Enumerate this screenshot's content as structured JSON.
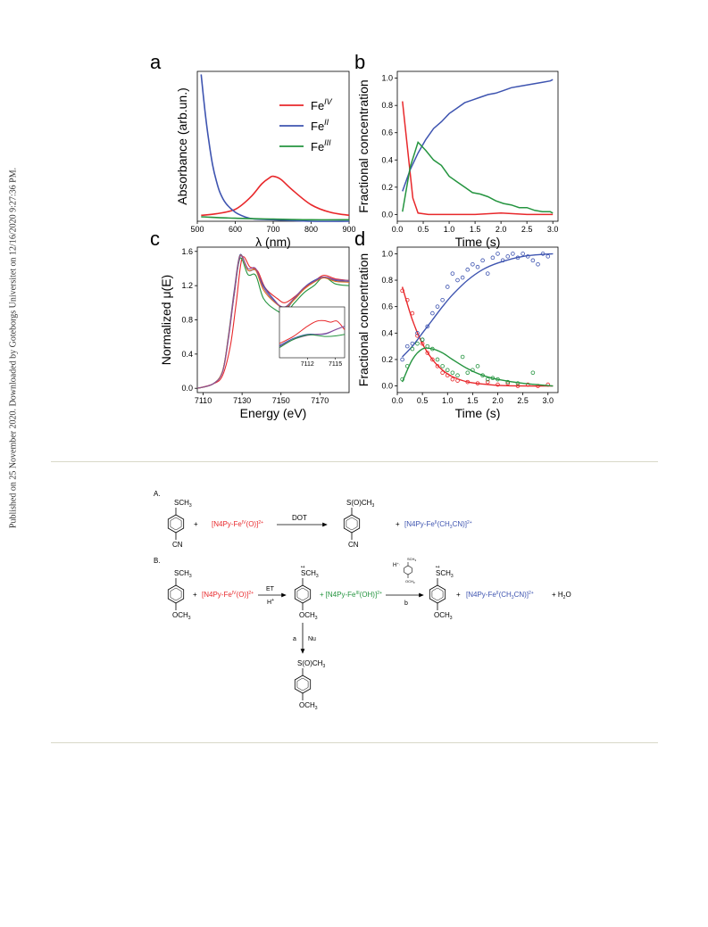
{
  "sidebar_text": "Published on 25 November 2020. Downloaded by Goteborgs Universitet on 12/16/2020 9:27:36 PM.",
  "colors": {
    "red": "#e8282b",
    "blue": "#3e54b0",
    "green": "#24943f",
    "orange": "#e0711d",
    "purple": "#8a4c9a"
  },
  "chart_data": [
    {
      "panel": "a",
      "type": "line",
      "xlabel": "λ (nm)",
      "ylabel": "Absorbance (arb.un.)",
      "xlim": [
        500,
        900
      ],
      "ylim": [
        0,
        1.0
      ],
      "xticks": [
        "500",
        "600",
        "700",
        "800",
        "900"
      ],
      "legend_position": "top-right",
      "series": [
        {
          "name": "FeIV",
          "label_base": "Fe",
          "label_sup": "IV",
          "color": "#e8282b",
          "x": [
            510,
            550,
            600,
            640,
            670,
            690,
            700,
            720,
            750,
            800,
            850,
            900
          ],
          "y": [
            0.04,
            0.05,
            0.08,
            0.16,
            0.25,
            0.29,
            0.3,
            0.28,
            0.21,
            0.11,
            0.06,
            0.04
          ]
        },
        {
          "name": "FeII",
          "label_base": "Fe",
          "label_sup": "II",
          "color": "#3e54b0",
          "x": [
            510,
            520,
            530,
            540,
            550,
            560,
            575,
            600,
            625,
            650,
            700,
            800,
            900
          ],
          "y": [
            0.98,
            0.74,
            0.54,
            0.38,
            0.27,
            0.19,
            0.12,
            0.06,
            0.03,
            0.015,
            0.01,
            0.0,
            0.0
          ]
        },
        {
          "name": "FeIII",
          "label_base": "Fe",
          "label_sup": "III",
          "color": "#24943f",
          "x": [
            510,
            600,
            700,
            800,
            900
          ],
          "y": [
            0.03,
            0.02,
            0.015,
            0.01,
            0.01
          ]
        }
      ]
    },
    {
      "panel": "b",
      "type": "line",
      "xlabel": "Time (s)",
      "ylabel": "Fractional concentration",
      "xlim": [
        0,
        3.1
      ],
      "ylim": [
        -0.05,
        1.05
      ],
      "xticks": [
        "0.0",
        "0.5",
        "1.0",
        "1.5",
        "2.0",
        "2.5",
        "3.0"
      ],
      "yticks": [
        "0.0",
        "0.2",
        "0.4",
        "0.6",
        "0.8",
        "1.0"
      ],
      "series": [
        {
          "color": "#e8282b",
          "x": [
            0.1,
            0.3,
            0.4,
            0.6,
            1.0,
            1.5,
            2.0,
            2.5,
            3.0
          ],
          "y": [
            0.83,
            0.12,
            0.01,
            0.0,
            0.0,
            0.0,
            0.01,
            0.0,
            0.0
          ]
        },
        {
          "color": "#3e54b0",
          "x": [
            0.1,
            0.25,
            0.4,
            0.55,
            0.7,
            0.85,
            1.0,
            1.15,
            1.3,
            1.45,
            1.6,
            1.75,
            1.9,
            2.05,
            2.2,
            2.35,
            2.5,
            2.65,
            2.8,
            2.95,
            3.0
          ],
          "y": [
            0.17,
            0.33,
            0.45,
            0.55,
            0.63,
            0.68,
            0.74,
            0.78,
            0.82,
            0.84,
            0.86,
            0.88,
            0.89,
            0.91,
            0.93,
            0.94,
            0.95,
            0.96,
            0.97,
            0.98,
            0.99
          ]
        },
        {
          "color": "#24943f",
          "x": [
            0.1,
            0.25,
            0.4,
            0.55,
            0.7,
            0.85,
            1.0,
            1.15,
            1.3,
            1.45,
            1.6,
            1.75,
            1.9,
            2.05,
            2.2,
            2.35,
            2.5,
            2.65,
            2.8,
            2.95,
            3.0
          ],
          "y": [
            0.02,
            0.35,
            0.53,
            0.47,
            0.4,
            0.36,
            0.28,
            0.24,
            0.2,
            0.16,
            0.15,
            0.13,
            0.1,
            0.08,
            0.07,
            0.05,
            0.05,
            0.03,
            0.02,
            0.02,
            0.01
          ]
        }
      ]
    },
    {
      "panel": "c",
      "type": "line",
      "xlabel": "Energy (eV)",
      "ylabel": "Normalized μ(E)",
      "xlim": [
        7107,
        7185
      ],
      "ylim": [
        -0.05,
        1.65
      ],
      "xticks": [
        "7110",
        "7130",
        "7150",
        "7170"
      ],
      "yticks": [
        "0.0",
        "0.4",
        "0.8",
        "1.2",
        "1.6"
      ],
      "series": [
        {
          "color": "#e8282b",
          "x": [
            7107,
            7115,
            7120,
            7124,
            7127,
            7130,
            7134,
            7138,
            7142,
            7148,
            7152,
            7157,
            7162,
            7167,
            7172,
            7178,
            7185
          ],
          "y": [
            0.0,
            0.05,
            0.15,
            0.5,
            1.0,
            1.52,
            1.42,
            1.37,
            1.17,
            1.05,
            1.0,
            1.07,
            1.17,
            1.25,
            1.32,
            1.28,
            1.26
          ]
        },
        {
          "color": "#3e54b0",
          "x": [
            7107,
            7115,
            7120,
            7123,
            7126,
            7129,
            7133,
            7137,
            7141,
            7147,
            7152,
            7157,
            7162,
            7167,
            7172,
            7178,
            7185
          ],
          "y": [
            0.0,
            0.05,
            0.2,
            0.62,
            1.15,
            1.56,
            1.38,
            1.38,
            1.2,
            1.02,
            0.92,
            1.05,
            1.18,
            1.26,
            1.3,
            1.26,
            1.25
          ]
        },
        {
          "color": "#24943f",
          "x": [
            7107,
            7115,
            7120,
            7123,
            7126,
            7129,
            7133,
            7137,
            7141,
            7147,
            7152,
            7157,
            7162,
            7167,
            7172,
            7178,
            7185
          ],
          "y": [
            0.0,
            0.05,
            0.2,
            0.6,
            1.1,
            1.52,
            1.33,
            1.32,
            1.05,
            0.92,
            0.88,
            1.0,
            1.12,
            1.2,
            1.3,
            1.22,
            1.2
          ]
        },
        {
          "color": "#e0711d",
          "x": [
            7107,
            7115,
            7120,
            7123,
            7126,
            7129,
            7133,
            7137,
            7141,
            7147,
            7152,
            7157,
            7162,
            7167,
            7172,
            7178,
            7185
          ],
          "y": [
            0.0,
            0.05,
            0.2,
            0.6,
            1.12,
            1.55,
            1.38,
            1.38,
            1.15,
            1.0,
            0.94,
            1.04,
            1.16,
            1.24,
            1.29,
            1.25,
            1.24
          ]
        },
        {
          "color": "#8a4c9a",
          "x": [
            7107,
            7115,
            7120,
            7123,
            7126,
            7129,
            7133,
            7137,
            7141,
            7147,
            7152,
            7157,
            7162,
            7167,
            7172,
            7178,
            7185
          ],
          "y": [
            0.0,
            0.05,
            0.19,
            0.58,
            1.1,
            1.54,
            1.4,
            1.4,
            1.18,
            1.01,
            0.95,
            1.06,
            1.18,
            1.25,
            1.3,
            1.27,
            1.26
          ]
        }
      ],
      "inset": {
        "xlim": [
          7109,
          7116
        ],
        "ylim": [
          0,
          1
        ],
        "xticks": [
          "7112",
          "7115"
        ],
        "series": [
          {
            "color": "#e8282b",
            "x": [
              7109,
              7110.5,
              7112,
              7113,
              7113.8,
              7114.5,
              7115.2,
              7116
            ],
            "y": [
              0.28,
              0.42,
              0.62,
              0.72,
              0.73,
              0.7,
              0.72,
              0.55
            ]
          },
          {
            "color": "#3e54b0",
            "x": [
              7109,
              7110.5,
              7112,
              7113,
              7114,
              7115,
              7116
            ],
            "y": [
              0.24,
              0.38,
              0.46,
              0.46,
              0.47,
              0.55,
              0.62
            ]
          },
          {
            "color": "#8a4c9a",
            "x": [
              7109,
              7110.5,
              7112,
              7113,
              7114,
              7115,
              7116
            ],
            "y": [
              0.22,
              0.36,
              0.44,
              0.46,
              0.48,
              0.55,
              0.62
            ]
          },
          {
            "color": "#24943f",
            "x": [
              7109,
              7110.5,
              7112,
              7113,
              7114,
              7115,
              7116
            ],
            "y": [
              0.2,
              0.36,
              0.45,
              0.44,
              0.42,
              0.43,
              0.46
            ]
          }
        ]
      }
    },
    {
      "panel": "d",
      "type": "scatter",
      "xlabel": "Time (s)",
      "ylabel": "Fractional concentration",
      "xlim": [
        0,
        3.2
      ],
      "ylim": [
        -0.05,
        1.05
      ],
      "xticks": [
        "0.0",
        "0.5",
        "1.0",
        "1.5",
        "2.0",
        "2.5",
        "3.0"
      ],
      "yticks": [
        "0.0",
        "0.2",
        "0.4",
        "0.6",
        "0.8",
        "1.0"
      ],
      "series": [
        {
          "color": "#e8282b",
          "x": [
            0.1,
            0.2,
            0.3,
            0.4,
            0.5,
            0.6,
            0.7,
            0.8,
            0.9,
            1.0,
            1.1,
            1.2,
            1.4,
            1.6,
            1.8,
            2.0,
            2.2,
            2.4,
            2.6,
            2.8,
            3.0
          ],
          "y": [
            0.72,
            0.65,
            0.55,
            0.38,
            0.32,
            0.25,
            0.2,
            0.15,
            0.1,
            0.08,
            0.05,
            0.04,
            0.03,
            0.02,
            0.03,
            0.01,
            0.02,
            0.0,
            0.01,
            0.0,
            0.01
          ],
          "fit_x": [
            0.1,
            0.3,
            0.5,
            0.7,
            0.9,
            1.1,
            1.4,
            1.7,
            2.0,
            2.5,
            3.1
          ],
          "fit_y": [
            0.75,
            0.5,
            0.32,
            0.2,
            0.12,
            0.07,
            0.03,
            0.015,
            0.005,
            0.0,
            0.0
          ]
        },
        {
          "color": "#3e54b0",
          "x": [
            0.1,
            0.2,
            0.3,
            0.4,
            0.5,
            0.6,
            0.7,
            0.8,
            0.9,
            1.0,
            1.1,
            1.2,
            1.3,
            1.4,
            1.5,
            1.6,
            1.7,
            1.8,
            1.9,
            2.0,
            2.1,
            2.2,
            2.3,
            2.4,
            2.5,
            2.6,
            2.7,
            2.8,
            2.9,
            3.0
          ],
          "y": [
            0.2,
            0.3,
            0.32,
            0.4,
            0.35,
            0.45,
            0.55,
            0.6,
            0.65,
            0.75,
            0.85,
            0.8,
            0.82,
            0.88,
            0.92,
            0.9,
            0.95,
            0.85,
            0.97,
            1.0,
            0.95,
            0.98,
            1.0,
            0.97,
            1.0,
            0.98,
            0.95,
            0.92,
            1.0,
            0.98
          ],
          "fit_x": [
            0.1,
            0.3,
            0.5,
            0.7,
            0.9,
            1.1,
            1.4,
            1.7,
            2.0,
            2.5,
            3.1
          ],
          "fit_y": [
            0.22,
            0.3,
            0.4,
            0.5,
            0.6,
            0.69,
            0.8,
            0.88,
            0.93,
            0.98,
            1.0
          ]
        },
        {
          "color": "#24943f",
          "x": [
            0.1,
            0.2,
            0.3,
            0.4,
            0.5,
            0.6,
            0.7,
            0.8,
            0.9,
            1.0,
            1.1,
            1.2,
            1.3,
            1.4,
            1.5,
            1.6,
            1.7,
            1.8,
            1.9,
            2.0,
            2.2,
            2.4,
            2.7
          ],
          "y": [
            0.05,
            0.15,
            0.28,
            0.32,
            0.35,
            0.3,
            0.28,
            0.2,
            0.15,
            0.12,
            0.1,
            0.08,
            0.22,
            0.1,
            0.12,
            0.15,
            0.08,
            0.05,
            0.06,
            0.05,
            0.03,
            0.02,
            0.1
          ],
          "fit_x": [
            0.1,
            0.3,
            0.5,
            0.7,
            0.9,
            1.1,
            1.4,
            1.7,
            2.0,
            2.5,
            3.1
          ],
          "fit_y": [
            0.03,
            0.2,
            0.28,
            0.28,
            0.25,
            0.2,
            0.13,
            0.08,
            0.05,
            0.02,
            0.0
          ]
        }
      ]
    }
  ],
  "panels": {
    "a": "a",
    "b": "b",
    "c": "c",
    "d": "d"
  },
  "scheme": {
    "A_label": "A.",
    "B_label": "B.",
    "sch3": "SCH",
    "sch3_sub": "3",
    "cn": "CN",
    "och3": "OCH",
    "och3_sub": "3",
    "sulfoxide": "S(O)CH",
    "sulfoxide_sub": "3",
    "plus": "+",
    "dot": "DOT",
    "et": "ET",
    "h_plus": "H",
    "plus_sup": "+",
    "radical": "•+",
    "arrow_a": "a",
    "arrow_b": "b",
    "nu": "Nu",
    "h_plus_comma": "H",
    "h_plus_comma_sup": "+,",
    "small_sch3": "SCH",
    "small_och3": "OCH",
    "red_complex_pre": "[N4Py-Fe",
    "red_complex_sup": "IV",
    "red_complex_post": "(O)]",
    "red_complex_charge": "2+",
    "blue_complex_pre": "[N4Py-Fe",
    "blue_complex_sup": "II",
    "blue_complex_post": "(CH",
    "blue_complex_sub": "3",
    "blue_complex_post2": "CN)]",
    "blue_complex_charge": "2+",
    "green_complex_pre": "[N4Py-Fe",
    "green_complex_sup": "III",
    "green_complex_post": "(OH)]",
    "green_complex_charge": "2+",
    "h2o_pre": "+ H",
    "h2o_sub": "2",
    "h2o_post": "O"
  }
}
